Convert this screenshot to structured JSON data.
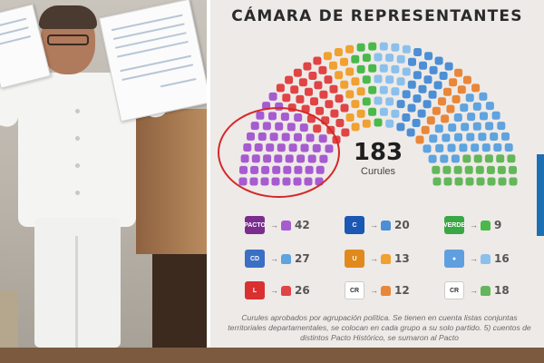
{
  "infographic": {
    "title": "CÁMARA DE REPRESENTANTES",
    "total_seats": "183",
    "seats_unit": "Curules",
    "footnote": "Curules aprobados por agrupación política. Se tienen en cuenta listas conjuntas territoriales departamentales, se colocan en cada grupo a su solo partido. 5) cuentos de distintos Pacto Histórico, se sumaron al Pacto",
    "parties": [
      {
        "id": "pacto-historico",
        "logo_text": "PACTO",
        "logo_color": "#7b2c8f",
        "seat_color": "#a75bd0",
        "count": "42"
      },
      {
        "id": "conservador",
        "logo_text": "C",
        "logo_color": "#1a58b4",
        "seat_color": "#4c8fd6",
        "count": "20"
      },
      {
        "id": "verde",
        "logo_text": "VERDE",
        "logo_color": "#3aa745",
        "seat_color": "#4ab94a",
        "count": "9"
      },
      {
        "id": "centro-democratico",
        "logo_text": "CD",
        "logo_color": "#3a6fc4",
        "seat_color": "#5fa3df",
        "count": "27"
      },
      {
        "id": "la-u",
        "logo_text": "U",
        "logo_color": "#e08a1e",
        "seat_color": "#f0a130",
        "count": "13"
      },
      {
        "id": "otros",
        "logo_text": "●",
        "logo_color": "#5f9fe0",
        "seat_color": "#8cc0ec",
        "count": "16"
      },
      {
        "id": "liberal",
        "logo_text": "L",
        "logo_color": "#d93030",
        "seat_color": "#e04444",
        "count": "26"
      },
      {
        "id": "cambio-radical",
        "logo_text": "CR",
        "logo_color": "#ffffff",
        "seat_color": "#e8873a",
        "count": "12"
      },
      {
        "id": "comunes",
        "logo_text": "CR",
        "logo_color": "#ffffff",
        "seat_color": "#63b75a",
        "count": "18"
      }
    ]
  }
}
